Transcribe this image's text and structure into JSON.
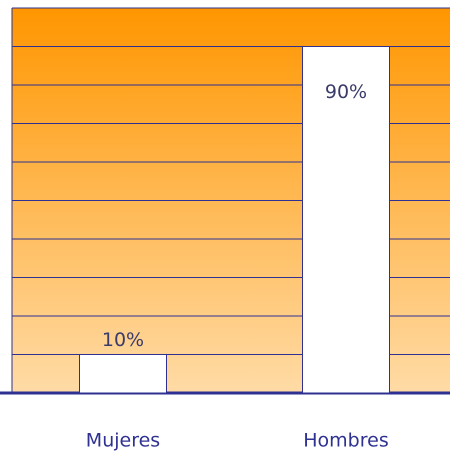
{
  "chart_data": {
    "type": "bar",
    "categories": [
      "Mujeres",
      "Hombres"
    ],
    "values": [
      10,
      90
    ],
    "value_labels": [
      "10%",
      "90%"
    ],
    "color": "#ffffff",
    "ylim": [
      0,
      100
    ],
    "yticks": [
      0,
      10,
      20,
      30,
      40,
      50,
      60,
      70,
      80,
      90,
      100
    ],
    "grid": true
  }
}
